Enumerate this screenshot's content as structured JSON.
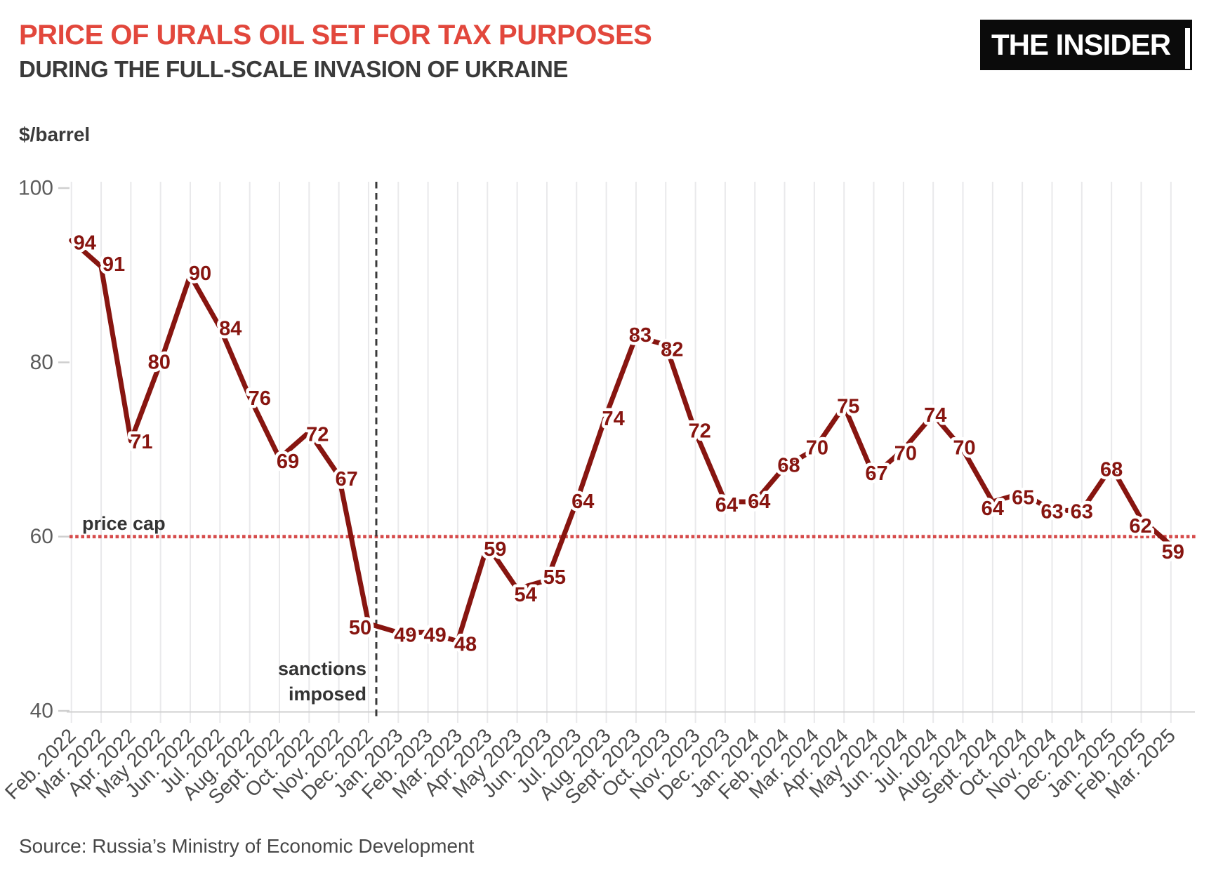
{
  "branding": {
    "logo_text": "THE INSIDER"
  },
  "chart_data": {
    "type": "line",
    "title": "PRICE OF URALS OIL SET FOR TAX PURPOSES",
    "subtitle": "DURING THE FULL-SCALE INVASION OF UKRAINE",
    "ylabel": "$/barrel",
    "ylim": [
      40,
      100
    ],
    "yticks": [
      100,
      80,
      60,
      40
    ],
    "grid": "vertical-per-month",
    "legend": "none",
    "categories": [
      "Feb. 2022",
      "Mar. 2022",
      "Apr. 2022",
      "May 2022",
      "Jun. 2022",
      "Jul. 2022",
      "Aug. 2022",
      "Sept. 2022",
      "Oct. 2022",
      "Nov. 2022",
      "Dec. 2022",
      "Jan. 2023",
      "Feb. 2023",
      "Mar. 2023",
      "Apr. 2023",
      "May 2023",
      "Jun. 2023",
      "Jul. 2023",
      "Aug. 2023",
      "Sept. 2023",
      "Oct. 2023",
      "Nov. 2023",
      "Dec. 2023",
      "Jan. 2024",
      "Feb. 2024",
      "Mar. 2024",
      "Apr. 2024",
      "May 2024",
      "Jun. 2024",
      "Jul. 2024",
      "Aug. 2024",
      "Sept. 2024",
      "Oct. 2024",
      "Nov. 2024",
      "Dec. 2024",
      "Jan. 2025",
      "Feb. 2025",
      "Mar. 2025"
    ],
    "values": [
      94,
      91,
      71,
      80,
      90,
      84,
      76,
      69,
      72,
      67,
      50,
      49,
      49,
      48,
      59,
      54,
      55,
      64,
      74,
      83,
      82,
      72,
      64,
      64,
      68,
      70,
      75,
      67,
      70,
      74,
      70,
      64,
      65,
      63,
      63,
      68,
      62,
      59
    ],
    "annotations": {
      "price_cap": {
        "label": "price cap",
        "y": 60,
        "style": "dotted-horizontal"
      },
      "sanctions": {
        "label_line1": "sanctions",
        "label_line2": "imposed",
        "x": "Dec. 2022",
        "style": "dashed-vertical"
      }
    },
    "colors": {
      "line": "#871510",
      "data_labels": "#871510",
      "price_cap_line": "#D64C4C",
      "sanctions_line": "#3A3A3A",
      "title": "#E2473C",
      "subtitle": "#3A3A3A",
      "grid": "#E9E9EB",
      "axis_line": "#CFCFCF",
      "y_tick_text": "#5C5C5C",
      "x_tick_text": "#4B4B4B"
    }
  },
  "footer": {
    "source": "Source: Russia’s Ministry of Economic Development"
  }
}
